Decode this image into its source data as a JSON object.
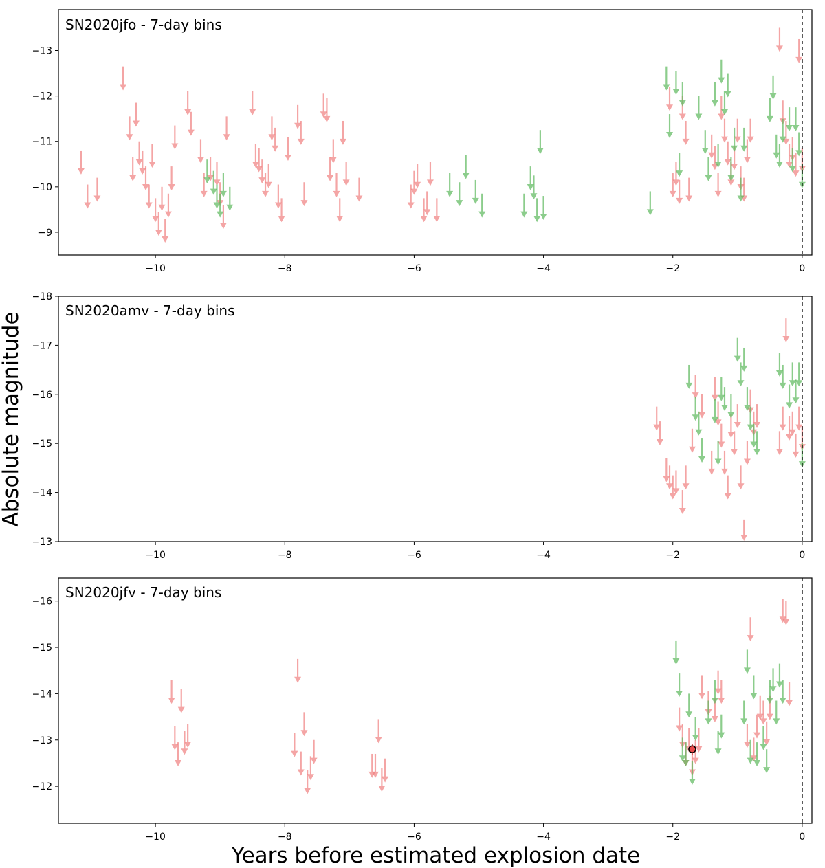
{
  "figure": {
    "ylabel": "Absolute magnitude",
    "xlabel": "Years before estimated explosion date"
  },
  "colors": {
    "red": "#f08080",
    "green": "#5cb85c",
    "axis": "#000000"
  },
  "chart_data": [
    {
      "type": "scatter",
      "title": "SN2020jfo - 7-day bins",
      "xlim": [
        -11.5,
        0.15
      ],
      "ylim": [
        -8.5,
        -13.9
      ],
      "xticks": [
        -10,
        -8,
        -6,
        -4,
        -2,
        0
      ],
      "yticks": [
        -9,
        -10,
        -11,
        -12,
        -13
      ],
      "marker": "upper-limit arrow",
      "series": [
        {
          "name": "red",
          "points": [
            [
              -11.15,
              -10.8
            ],
            [
              -11.05,
              -10.05
            ],
            [
              -10.9,
              -10.2
            ],
            [
              -10.5,
              -12.65
            ],
            [
              -10.4,
              -11.55
            ],
            [
              -10.35,
              -10.65
            ],
            [
              -10.3,
              -11.85
            ],
            [
              -10.25,
              -11.0
            ],
            [
              -10.2,
              -10.8
            ],
            [
              -10.15,
              -10.45
            ],
            [
              -10.1,
              -10.05
            ],
            [
              -10.05,
              -10.95
            ],
            [
              -10.0,
              -9.75
            ],
            [
              -9.95,
              -9.45
            ],
            [
              -9.9,
              -10.0
            ],
            [
              -9.85,
              -9.3
            ],
            [
              -9.8,
              -9.85
            ],
            [
              -9.75,
              -10.45
            ],
            [
              -9.7,
              -11.35
            ],
            [
              -9.5,
              -12.1
            ],
            [
              -9.45,
              -11.65
            ],
            [
              -9.3,
              -11.05
            ],
            [
              -9.25,
              -10.3
            ],
            [
              -9.15,
              -10.65
            ],
            [
              -9.05,
              -10.55
            ],
            [
              -9.0,
              -10.1
            ],
            [
              -8.95,
              -9.6
            ],
            [
              -8.9,
              -11.55
            ],
            [
              -8.5,
              -12.1
            ],
            [
              -8.45,
              -10.95
            ],
            [
              -8.4,
              -10.85
            ],
            [
              -8.35,
              -10.6
            ],
            [
              -8.3,
              -10.3
            ],
            [
              -8.25,
              -10.5
            ],
            [
              -8.2,
              -11.55
            ],
            [
              -8.15,
              -11.3
            ],
            [
              -8.1,
              -10.05
            ],
            [
              -8.05,
              -9.75
            ],
            [
              -7.95,
              -11.1
            ],
            [
              -7.8,
              -11.8
            ],
            [
              -7.75,
              -11.45
            ],
            [
              -7.7,
              -10.1
            ],
            [
              -7.4,
              -12.05
            ],
            [
              -7.35,
              -11.95
            ],
            [
              -7.3,
              -10.65
            ],
            [
              -7.25,
              -11.05
            ],
            [
              -7.2,
              -10.3
            ],
            [
              -7.15,
              -9.75
            ],
            [
              -7.1,
              -11.45
            ],
            [
              -7.05,
              -10.55
            ],
            [
              -6.85,
              -10.2
            ],
            [
              -6.05,
              -10.05
            ],
            [
              -6.0,
              -10.35
            ],
            [
              -5.95,
              -10.5
            ],
            [
              -5.85,
              -9.75
            ],
            [
              -5.8,
              -9.9
            ],
            [
              -5.75,
              -10.55
            ],
            [
              -5.65,
              -9.75
            ],
            [
              -2.05,
              -12.2
            ],
            [
              -2.0,
              -10.3
            ],
            [
              -1.95,
              -10.55
            ],
            [
              -1.9,
              -10.15
            ],
            [
              -1.85,
              -12.0
            ],
            [
              -1.8,
              -11.45
            ],
            [
              -1.75,
              -10.2
            ],
            [
              -1.4,
              -11.15
            ],
            [
              -1.35,
              -10.9
            ],
            [
              -1.3,
              -10.3
            ],
            [
              -1.25,
              -12.0
            ],
            [
              -1.2,
              -11.5
            ],
            [
              -1.15,
              -11.0
            ],
            [
              -1.1,
              -10.55
            ],
            [
              -1.05,
              -10.9
            ],
            [
              -1.0,
              -11.5
            ],
            [
              -0.95,
              -10.45
            ],
            [
              -0.9,
              -10.2
            ],
            [
              -0.85,
              -11.05
            ],
            [
              -0.8,
              -11.5
            ],
            [
              -0.35,
              -13.5
            ],
            [
              -0.3,
              -11.9
            ],
            [
              -0.25,
              -11.45
            ],
            [
              -0.2,
              -10.95
            ],
            [
              -0.15,
              -11.1
            ],
            [
              -0.1,
              -10.75
            ],
            [
              -0.05,
              -13.25
            ],
            [
              0.0,
              -10.85
            ]
          ]
        },
        {
          "name": "green",
          "points": [
            [
              -9.2,
              -10.6
            ],
            [
              -9.1,
              -10.35
            ],
            [
              -9.05,
              -10.05
            ],
            [
              -9.0,
              -9.85
            ],
            [
              -8.95,
              -10.3
            ],
            [
              -8.85,
              -10.0
            ],
            [
              -5.45,
              -10.3
            ],
            [
              -5.3,
              -10.1
            ],
            [
              -5.2,
              -10.7
            ],
            [
              -5.05,
              -10.15
            ],
            [
              -4.95,
              -9.85
            ],
            [
              -4.3,
              -9.85
            ],
            [
              -4.2,
              -10.45
            ],
            [
              -4.15,
              -10.25
            ],
            [
              -4.1,
              -9.75
            ],
            [
              -4.05,
              -11.25
            ],
            [
              -4.0,
              -9.8
            ],
            [
              -2.35,
              -9.9
            ],
            [
              -2.1,
              -12.65
            ],
            [
              -2.05,
              -11.6
            ],
            [
              -1.95,
              -12.55
            ],
            [
              -1.9,
              -10.75
            ],
            [
              -1.85,
              -12.3
            ],
            [
              -1.6,
              -12.0
            ],
            [
              -1.5,
              -11.25
            ],
            [
              -1.45,
              -10.65
            ],
            [
              -1.35,
              -12.3
            ],
            [
              -1.3,
              -10.95
            ],
            [
              -1.25,
              -12.8
            ],
            [
              -1.2,
              -12.1
            ],
            [
              -1.15,
              -12.5
            ],
            [
              -1.1,
              -10.65
            ],
            [
              -1.05,
              -11.3
            ],
            [
              -0.95,
              -10.2
            ],
            [
              -0.9,
              -11.3
            ],
            [
              -0.5,
              -11.95
            ],
            [
              -0.45,
              -12.45
            ],
            [
              -0.4,
              -11.15
            ],
            [
              -0.35,
              -10.95
            ],
            [
              -0.3,
              -11.5
            ],
            [
              -0.2,
              -11.75
            ],
            [
              -0.15,
              -10.85
            ],
            [
              -0.1,
              -11.75
            ],
            [
              -0.05,
              -11.2
            ],
            [
              0.0,
              -10.5
            ]
          ]
        }
      ]
    },
    {
      "type": "scatter",
      "title": "SN2020amv - 7-day bins",
      "xlim": [
        -11.5,
        0.15
      ],
      "ylim": [
        -13.0,
        -18.0
      ],
      "xticks": [
        -10,
        -8,
        -6,
        -4,
        -2,
        0
      ],
      "yticks": [
        -13,
        -14,
        -15,
        -16,
        -17,
        -18
      ],
      "marker": "upper-limit arrow",
      "series": [
        {
          "name": "red",
          "points": [
            [
              -2.25,
              -15.75
            ],
            [
              -2.2,
              -15.45
            ],
            [
              -2.1,
              -14.7
            ],
            [
              -2.05,
              -14.55
            ],
            [
              -2.0,
              -14.35
            ],
            [
              -1.95,
              -14.45
            ],
            [
              -1.85,
              -14.05
            ],
            [
              -1.8,
              -14.55
            ],
            [
              -1.7,
              -15.3
            ],
            [
              -1.65,
              -16.4
            ],
            [
              -1.55,
              -16.0
            ],
            [
              -1.4,
              -14.85
            ],
            [
              -1.35,
              -16.35
            ],
            [
              -1.3,
              -15.85
            ],
            [
              -1.25,
              -15.4
            ],
            [
              -1.2,
              -14.85
            ],
            [
              -1.15,
              -14.35
            ],
            [
              -1.1,
              -15.6
            ],
            [
              -1.05,
              -15.25
            ],
            [
              -1.0,
              -15.8
            ],
            [
              -0.95,
              -14.55
            ],
            [
              -0.9,
              -13.45
            ],
            [
              -0.85,
              -15.05
            ],
            [
              -0.8,
              -16.1
            ],
            [
              -0.75,
              -15.65
            ],
            [
              -0.7,
              -15.8
            ],
            [
              -0.35,
              -15.25
            ],
            [
              -0.3,
              -15.75
            ],
            [
              -0.25,
              -17.55
            ],
            [
              -0.2,
              -15.55
            ],
            [
              -0.15,
              -15.65
            ],
            [
              -0.1,
              -15.2
            ],
            [
              -0.05,
              -15.75
            ],
            [
              0.0,
              -15.35
            ]
          ]
        },
        {
          "name": "green",
          "points": [
            [
              -1.75,
              -16.6
            ],
            [
              -1.65,
              -15.95
            ],
            [
              -1.6,
              -15.65
            ],
            [
              -1.55,
              -15.1
            ],
            [
              -1.35,
              -15.9
            ],
            [
              -1.3,
              -15.05
            ],
            [
              -1.25,
              -16.35
            ],
            [
              -1.2,
              -16.15
            ],
            [
              -1.1,
              -16.0
            ],
            [
              -1.0,
              -17.15
            ],
            [
              -0.95,
              -16.65
            ],
            [
              -0.9,
              -16.95
            ],
            [
              -0.85,
              -16.15
            ],
            [
              -0.8,
              -15.75
            ],
            [
              -0.75,
              -15.4
            ],
            [
              -0.7,
              -15.25
            ],
            [
              -0.35,
              -16.85
            ],
            [
              -0.3,
              -16.6
            ],
            [
              -0.2,
              -16.2
            ],
            [
              -0.15,
              -16.65
            ],
            [
              -0.1,
              -16.3
            ],
            [
              -0.05,
              -16.65
            ],
            [
              0.0,
              -15.0
            ]
          ]
        }
      ]
    },
    {
      "type": "scatter",
      "title": "SN2020jfv - 7-day bins",
      "xlim": [
        -11.5,
        0.15
      ],
      "ylim": [
        -11.2,
        -16.5
      ],
      "xticks": [
        -10,
        -8,
        -6,
        -4,
        -2,
        0
      ],
      "yticks": [
        -12,
        -13,
        -14,
        -15,
        -16
      ],
      "marker": "upper-limit arrow",
      "series": [
        {
          "name": "red",
          "points": [
            [
              -9.75,
              -14.3
            ],
            [
              -9.7,
              -13.3
            ],
            [
              -9.65,
              -12.95
            ],
            [
              -9.6,
              -14.1
            ],
            [
              -9.55,
              -13.2
            ],
            [
              -9.5,
              -13.35
            ],
            [
              -7.85,
              -13.15
            ],
            [
              -7.8,
              -14.75
            ],
            [
              -7.75,
              -12.75
            ],
            [
              -7.7,
              -13.6
            ],
            [
              -7.65,
              -12.35
            ],
            [
              -7.6,
              -12.65
            ],
            [
              -7.55,
              -13.0
            ],
            [
              -6.65,
              -12.7
            ],
            [
              -6.6,
              -12.7
            ],
            [
              -6.55,
              -13.45
            ],
            [
              -6.5,
              -12.4
            ],
            [
              -6.45,
              -12.6
            ],
            [
              -1.9,
              -13.7
            ],
            [
              -1.85,
              -13.35
            ],
            [
              -1.8,
              -12.95
            ],
            [
              -1.75,
              -13.25
            ],
            [
              -1.7,
              -12.75
            ],
            [
              -1.65,
              -13.0
            ],
            [
              -1.6,
              -13.25
            ],
            [
              -1.55,
              -14.4
            ],
            [
              -1.45,
              -14.05
            ],
            [
              -1.35,
              -13.9
            ],
            [
              -1.3,
              -14.5
            ],
            [
              -1.25,
              -14.3
            ],
            [
              -0.85,
              -13.35
            ],
            [
              -0.8,
              -15.65
            ],
            [
              -0.75,
              -13.05
            ],
            [
              -0.7,
              -13.55
            ],
            [
              -0.65,
              -13.95
            ],
            [
              -0.6,
              -13.85
            ],
            [
              -0.55,
              -13.4
            ],
            [
              -0.5,
              -13.95
            ],
            [
              -0.3,
              -16.05
            ],
            [
              -0.25,
              -16.0
            ],
            [
              -0.2,
              -14.25
            ]
          ]
        },
        {
          "name": "green",
          "points": [
            [
              -1.95,
              -15.15
            ],
            [
              -1.9,
              -14.45
            ],
            [
              -1.85,
              -13.05
            ],
            [
              -1.8,
              -12.95
            ],
            [
              -1.75,
              -14.0
            ],
            [
              -1.7,
              -12.55
            ],
            [
              -1.65,
              -13.5
            ],
            [
              -1.45,
              -13.85
            ],
            [
              -1.35,
              -14.3
            ],
            [
              -1.3,
              -13.2
            ],
            [
              -1.25,
              -13.55
            ],
            [
              -0.9,
              -13.85
            ],
            [
              -0.85,
              -14.95
            ],
            [
              -0.8,
              -13.0
            ],
            [
              -0.75,
              -14.4
            ],
            [
              -0.7,
              -12.95
            ],
            [
              -0.6,
              -13.3
            ],
            [
              -0.55,
              -12.8
            ],
            [
              -0.5,
              -14.3
            ],
            [
              -0.45,
              -14.55
            ],
            [
              -0.4,
              -13.85
            ],
            [
              -0.35,
              -14.65
            ],
            [
              -0.3,
              -14.3
            ]
          ]
        },
        {
          "name": "detection",
          "points": [
            [
              -1.7,
              -12.8
            ]
          ]
        }
      ]
    }
  ]
}
